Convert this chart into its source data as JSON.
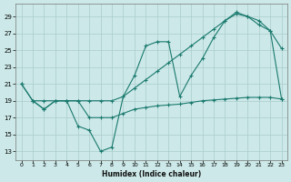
{
  "xlabel": "Humidex (Indice chaleur)",
  "background_color": "#cce8e8",
  "line_color": "#1a7a6e",
  "grid_color": "#aacccc",
  "xlim": [
    -0.5,
    23.5
  ],
  "ylim": [
    12.0,
    30.5
  ],
  "xticks": [
    0,
    1,
    2,
    3,
    4,
    5,
    6,
    7,
    8,
    9,
    10,
    11,
    12,
    13,
    14,
    15,
    16,
    17,
    18,
    19,
    20,
    21,
    22,
    23
  ],
  "yticks": [
    13,
    15,
    17,
    19,
    21,
    23,
    25,
    27,
    29
  ],
  "line1_x": [
    0,
    1,
    2,
    3,
    4,
    5,
    6,
    7,
    8,
    9,
    10,
    11,
    12,
    13,
    14,
    15,
    16,
    17,
    18,
    19,
    20,
    21,
    22,
    23
  ],
  "line1_y": [
    21,
    19,
    18,
    19,
    19,
    16,
    15.5,
    13,
    13.5,
    19.5,
    22,
    25.5,
    26,
    26,
    19.5,
    22,
    24,
    26.5,
    28.5,
    29.3,
    29.0,
    28.5,
    27.3,
    25.2
  ],
  "line2_x": [
    0,
    1,
    2,
    3,
    4,
    5,
    6,
    7,
    8,
    9,
    10,
    11,
    12,
    13,
    14,
    15,
    16,
    17,
    18,
    19,
    20,
    21,
    22,
    23
  ],
  "line2_y": [
    21,
    19,
    19,
    19,
    19,
    19,
    19,
    19,
    19,
    19.5,
    20.5,
    21.5,
    22.5,
    23.5,
    24.5,
    25.5,
    26.5,
    27.5,
    28.5,
    29.5,
    29.0,
    28.0,
    27.3,
    19.2
  ],
  "line3_x": [
    1,
    2,
    3,
    4,
    5,
    6,
    7,
    8,
    9,
    10,
    11,
    12,
    13,
    14,
    15,
    16,
    17,
    18,
    19,
    20,
    21,
    22,
    23
  ],
  "line3_y": [
    19,
    18,
    19,
    19,
    19,
    17,
    17,
    17,
    17.5,
    18,
    18.2,
    18.4,
    18.5,
    18.6,
    18.8,
    19,
    19.1,
    19.2,
    19.3,
    19.4,
    19.4,
    19.4,
    19.2
  ]
}
